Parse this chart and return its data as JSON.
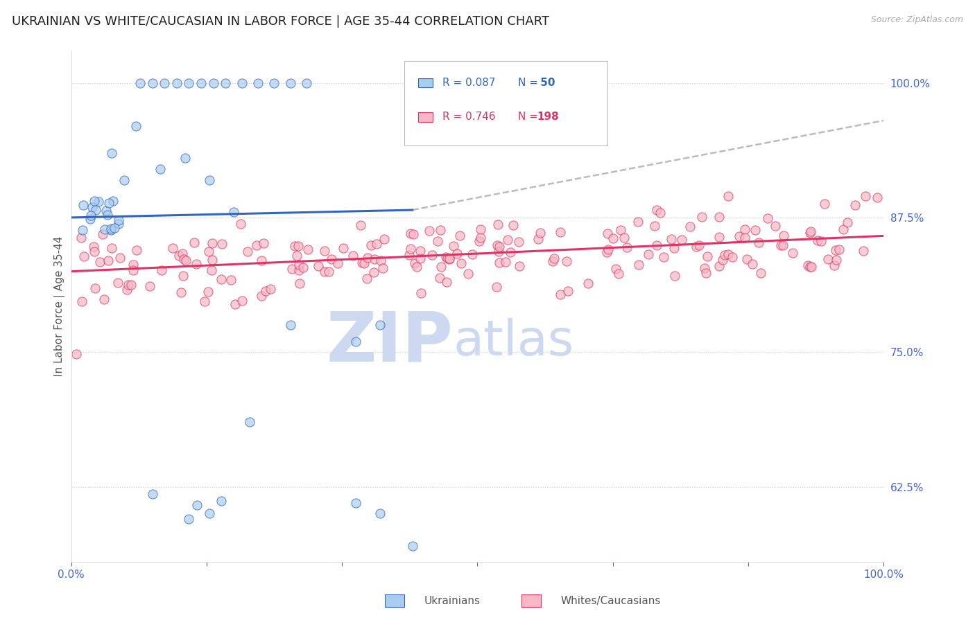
{
  "title": "UKRAINIAN VS WHITE/CAUCASIAN IN LABOR FORCE | AGE 35-44 CORRELATION CHART",
  "source": "Source: ZipAtlas.com",
  "ylabel": "In Labor Force | Age 35-44",
  "xlim": [
    0.0,
    1.0
  ],
  "ylim": [
    0.555,
    1.03
  ],
  "yticks": [
    0.625,
    0.75,
    0.875,
    1.0
  ],
  "ytick_labels": [
    "62.5%",
    "75.0%",
    "87.5%",
    "100.0%"
  ],
  "title_color": "#222222",
  "title_fontsize": 13,
  "axis_color": "#4466cc",
  "source_color": "#aaaaaa",
  "watermark_zip": "ZIP",
  "watermark_atlas": "atlas",
  "watermark_color": "#ccd9f0",
  "blue_color": "#aaccee",
  "pink_color": "#f5b8c4",
  "trend_blue": "#3366bb",
  "trend_pink": "#dd3366",
  "trend_gray": "#bbbbbb",
  "blue_trend_x": [
    0.0,
    0.42
  ],
  "blue_trend_y": [
    0.875,
    0.882
  ],
  "gray_trend_x": [
    0.42,
    1.0
  ],
  "gray_trend_y": [
    0.882,
    0.965
  ],
  "pink_trend_x": [
    0.0,
    1.0
  ],
  "pink_trend_y": [
    0.825,
    0.858
  ]
}
